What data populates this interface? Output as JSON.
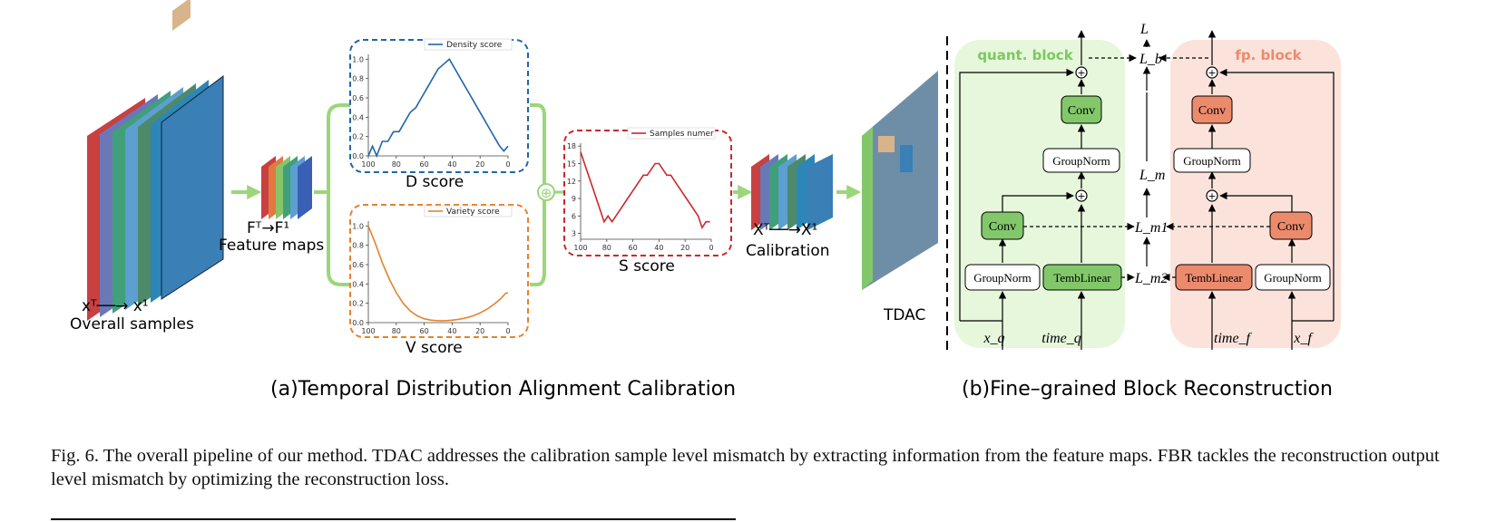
{
  "panel_a": {
    "overall_seq": "xᵀ──→ x¹",
    "overall_label": "Overall samples",
    "feature_seq": "Fᵀ→F¹",
    "feature_label": "Feature maps",
    "d_score": "D  score",
    "v_score": "V  score",
    "s_score": "S  score",
    "calib_seq": "Xᵀ──→X¹",
    "calib_label": "Calibration",
    "tdac_label": "TDAC",
    "caption": "(a)Temporal Distribution Alignment Calibration",
    "plus_symbol": "⊕"
  },
  "panel_b": {
    "quant_block": "quant. block",
    "fp_block": "fp. block",
    "conv": "Conv",
    "groupnorm": "GroupNorm",
    "temblinear": "TembLinear",
    "loss_L": "L",
    "loss_Lb": "L_b",
    "loss_Lm": "L_m",
    "loss_Lm1": "L_m1",
    "loss_Lm2": "L_m2",
    "input_xq": "x_q",
    "input_timeq": "time_q",
    "input_timef": "time_f",
    "input_xf": "x_f",
    "caption": "(b)Fine–grained Block Reconstruction"
  },
  "caption": {
    "text": "Fig. 6.  The overall pipeline of our method. TDAC addresses the calibration sample level mismatch by extracting information from the feature maps. FBR tackles the reconstruction output level mismatch by optimizing the reconstruction loss."
  },
  "colors": {
    "green_arrow": "#9bd67a",
    "density_line": "#2166a8",
    "variety_line": "#e6822c",
    "samples_line": "#c9282d",
    "quant_bg": "#e6f7dc",
    "fp_bg": "#fbe3dc",
    "quant_box": "#82c86a",
    "fp_box": "#ec8a6c"
  },
  "chart_data": [
    {
      "type": "line",
      "legend": "Density score",
      "x": [
        100,
        97,
        94,
        90,
        86,
        82,
        78,
        74,
        70,
        66,
        62,
        58,
        54,
        50,
        46,
        42,
        38,
        34,
        30,
        26,
        22,
        18,
        14,
        10,
        6,
        3,
        0
      ],
      "y": [
        0.0,
        0.1,
        0.0,
        0.15,
        0.15,
        0.25,
        0.25,
        0.35,
        0.45,
        0.5,
        0.6,
        0.7,
        0.8,
        0.9,
        0.95,
        1.0,
        0.9,
        0.8,
        0.7,
        0.6,
        0.5,
        0.4,
        0.3,
        0.2,
        0.1,
        0.05,
        0.1
      ],
      "xticks": [
        "100",
        "80",
        "60",
        "40",
        "20",
        "0"
      ],
      "yticks": [
        "0.0",
        "0.2",
        "0.4",
        "0.6",
        "0.8",
        "1.0"
      ],
      "xlim": [
        100,
        0
      ],
      "ylim": [
        0,
        1.05
      ],
      "legend_position": "top-right"
    },
    {
      "type": "line",
      "legend": "Variety score",
      "x": [
        100,
        95,
        90,
        85,
        80,
        75,
        70,
        65,
        60,
        55,
        50,
        45,
        40,
        35,
        30,
        25,
        20,
        15,
        10,
        5,
        2,
        0
      ],
      "y": [
        1.0,
        0.82,
        0.62,
        0.45,
        0.31,
        0.2,
        0.12,
        0.07,
        0.04,
        0.025,
        0.02,
        0.02,
        0.025,
        0.035,
        0.05,
        0.07,
        0.1,
        0.14,
        0.19,
        0.25,
        0.3,
        0.31
      ],
      "xticks": [
        "100",
        "80",
        "60",
        "40",
        "20",
        "0"
      ],
      "yticks": [
        "0.0",
        "0.2",
        "0.4",
        "0.6",
        "0.8",
        "1.0"
      ],
      "xlim": [
        100,
        0
      ],
      "ylim": [
        0,
        1.05
      ],
      "legend_position": "top-right"
    },
    {
      "type": "line",
      "legend": "Samples numer",
      "x": [
        100,
        97,
        94,
        91,
        88,
        85,
        82,
        79,
        76,
        73,
        70,
        67,
        64,
        61,
        58,
        55,
        52,
        49,
        46,
        43,
        40,
        37,
        34,
        31,
        28,
        25,
        22,
        19,
        16,
        13,
        10,
        7,
        4,
        1
      ],
      "y": [
        17,
        15,
        13,
        11,
        9,
        7,
        5,
        6,
        5,
        6,
        7,
        8,
        9,
        10,
        11,
        12,
        13,
        13,
        14,
        15,
        15,
        14,
        13,
        13,
        12,
        11,
        10,
        9,
        8,
        7,
        6,
        4,
        5,
        5
      ],
      "xticks": [
        "100",
        "80",
        "60",
        "40",
        "20",
        "0"
      ],
      "yticks": [
        "3",
        "6",
        "9",
        "12",
        "15",
        "18"
      ],
      "xlim": [
        100,
        0
      ],
      "ylim": [
        2,
        18.5
      ],
      "legend_position": "top-right"
    }
  ]
}
